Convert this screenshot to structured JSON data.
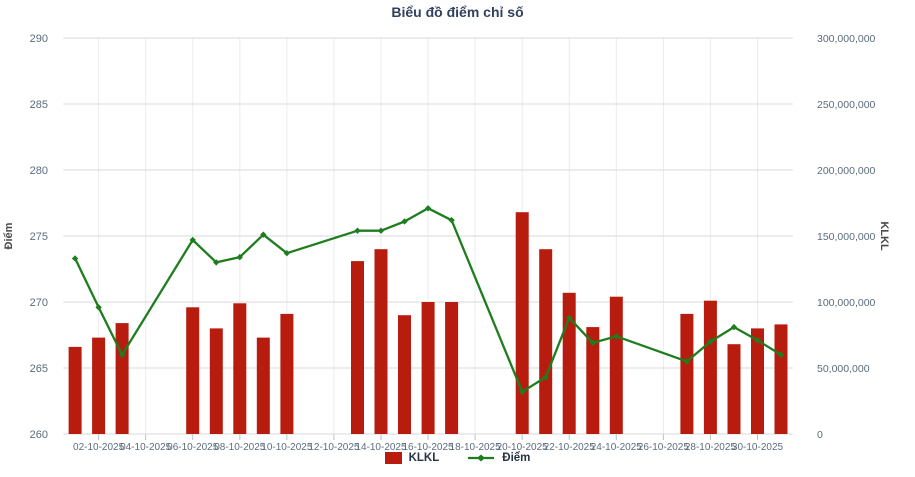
{
  "chart_data": {
    "type": "bar+line",
    "title": "Biểu đồ điểm chỉ số",
    "x": [
      "01-10-2025",
      "02-10-2025",
      "03-10-2025",
      "06-10-2025",
      "07-10-2025",
      "08-10-2025",
      "09-10-2025",
      "10-10-2025",
      "13-10-2025",
      "14-10-2025",
      "15-10-2025",
      "16-10-2025",
      "17-10-2025",
      "20-10-2025",
      "21-10-2025",
      "22-10-2025",
      "23-10-2025",
      "24-10-2025",
      "27-10-2025",
      "28-10-2025",
      "29-10-2025",
      "30-10-2025",
      "31-10-2025"
    ],
    "series": [
      {
        "name": "KLKL",
        "type": "bar",
        "axis": "right",
        "values": [
          66000000,
          73000000,
          84000000,
          96000000,
          80000000,
          99000000,
          73000000,
          91000000,
          131000000,
          140000000,
          90000000,
          100000000,
          100000000,
          168000000,
          140000000,
          107000000,
          81000000,
          104000000,
          91000000,
          101000000,
          68000000,
          80000000,
          83000000
        ]
      },
      {
        "name": "Điểm",
        "type": "line",
        "axis": "left",
        "values": [
          273.3,
          269.6,
          266.0,
          274.7,
          273.0,
          273.4,
          275.1,
          273.7,
          275.4,
          275.4,
          276.1,
          277.1,
          276.2,
          263.2,
          264.3,
          268.8,
          266.9,
          267.4,
          265.5,
          267.0,
          268.1,
          267.1,
          266.0
        ]
      }
    ],
    "left_axis": {
      "title": "Điểm",
      "min": 260,
      "max": 290,
      "step": 5,
      "tick_labels": [
        "260",
        "265",
        "270",
        "275",
        "280",
        "285",
        "290"
      ]
    },
    "right_axis": {
      "title": "KLKL",
      "min": 0,
      "max": 300000000,
      "step": 50000000,
      "tick_labels": [
        "0",
        "50,000,000",
        "100,000,000",
        "150,000,000",
        "200,000,000",
        "250,000,000",
        "300,000,000"
      ]
    },
    "x_axis": {
      "tick_labels": [
        "02-10-2025",
        "04-10-2025",
        "06-10-2025",
        "08-10-2025",
        "10-10-2025",
        "12-10-2025",
        "14-10-2025",
        "16-10-2025",
        "18-10-2025",
        "20-10-2025",
        "22-10-2025",
        "24-10-2025",
        "26-10-2025",
        "28-10-2025",
        "30-10-2025"
      ]
    },
    "legend": {
      "position": "bottom",
      "items": [
        {
          "label": "KLKL",
          "marker": "square"
        },
        {
          "label": "Điểm",
          "marker": "line"
        }
      ]
    },
    "grid": {
      "horizontal": true,
      "vertical": true
    },
    "days_in_month": 31
  },
  "colors": {
    "background": "#ffffff",
    "title": "#33415e",
    "axis_title": "#4a4a4a",
    "tick_label": "#5b6c7e",
    "grid_h": "#d9d9d9",
    "grid_v": "#e9edf0",
    "tick_mark": "#b9c2cb",
    "bar": "#b71c0e",
    "line": "#1e7d1e",
    "legend_text": "#263445"
  }
}
